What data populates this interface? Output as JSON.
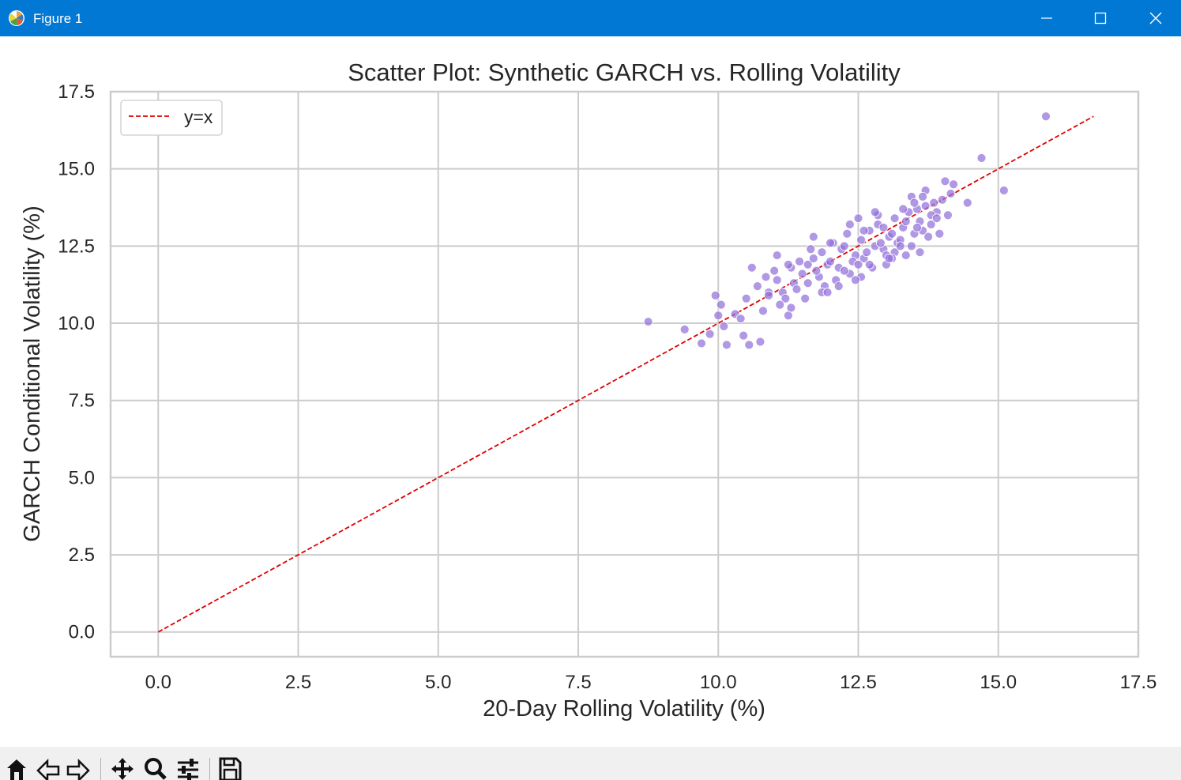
{
  "window": {
    "title": "Figure 1",
    "icon": "matplotlib-icon",
    "controls": [
      "minimize-icon",
      "maximize-icon",
      "close-icon"
    ]
  },
  "toolbar": {
    "buttons": [
      "home-icon",
      "back-icon",
      "forward-icon",
      "pan-icon",
      "zoom-icon",
      "configure-subplots-icon",
      "save-icon"
    ]
  },
  "chart_data": {
    "type": "scatter",
    "title": "Scatter Plot: Synthetic GARCH vs. Rolling Volatility",
    "xlabel": "20-Day Rolling Volatility (%)",
    "ylabel": "GARCH Conditional Volatility (%)",
    "xlim": [
      -0.85,
      17.5
    ],
    "ylim": [
      -0.8,
      17.5
    ],
    "xticks": [
      "0.0",
      "2.5",
      "5.0",
      "7.5",
      "10.0",
      "12.5",
      "15.0",
      "17.5"
    ],
    "yticks": [
      "0.0",
      "2.5",
      "5.0",
      "7.5",
      "10.0",
      "12.5",
      "15.0",
      "17.5"
    ],
    "grid": true,
    "legend": {
      "position": "top-left",
      "entries": [
        "y=x"
      ]
    },
    "point_color": "#9370DB",
    "line_color": "#e00000",
    "reference_line": {
      "label": "y=x",
      "style": "dashed",
      "x": [
        0,
        16.7
      ],
      "y": [
        0,
        16.7
      ]
    },
    "points": {
      "x": [
        8.75,
        9.4,
        9.7,
        9.85,
        9.95,
        10.0,
        10.05,
        10.1,
        10.15,
        10.3,
        10.4,
        10.45,
        10.5,
        10.55,
        10.6,
        10.75,
        10.8,
        10.9,
        11.25,
        14.7,
        15.1,
        15.85,
        14.45,
        14.2
      ],
      "y": [
        10.05,
        9.8,
        9.35,
        9.65,
        10.9,
        10.25,
        10.6,
        9.9,
        9.3,
        10.3,
        10.15,
        9.6,
        10.8,
        9.3,
        11.8,
        9.4,
        10.4,
        11.0,
        10.25,
        15.35,
        14.3,
        16.7,
        13.9,
        14.5
      ],
      "cluster": {
        "x": [
          10.7,
          10.9,
          11.05,
          11.15,
          11.3,
          11.35,
          11.5,
          11.6,
          11.7,
          11.8,
          11.85,
          11.95,
          12.05,
          12.15,
          12.2,
          12.3,
          12.35,
          12.45,
          12.55,
          12.6,
          12.7,
          12.8,
          12.85,
          12.95,
          13.05,
          13.15,
          13.2,
          13.3,
          13.4,
          13.5,
          13.6,
          13.7,
          13.8,
          13.9,
          14.0,
          14.1,
          11.2,
          11.4,
          11.6,
          11.75,
          11.9,
          12.0,
          12.1,
          12.25,
          12.4,
          12.5,
          12.65,
          12.75,
          12.9,
          13.0,
          13.1,
          13.25,
          13.35,
          13.45,
          13.55,
          13.65,
          13.75,
          13.85,
          10.85,
          11.0,
          11.1,
          11.45,
          11.55,
          11.65,
          12.35,
          12.55,
          12.7,
          12.85,
          13.0,
          13.15,
          13.3,
          13.45,
          13.6,
          13.8,
          11.3,
          11.85,
          12.0,
          12.15,
          12.45,
          12.6,
          12.95,
          13.1,
          13.35,
          13.5,
          13.7,
          13.95,
          14.05,
          11.05,
          11.25,
          11.7,
          11.95,
          12.25,
          12.5,
          12.8,
          13.05,
          13.25,
          13.55,
          13.65,
          13.9,
          14.15
        ],
        "y": [
          11.2,
          10.9,
          11.4,
          11.0,
          11.8,
          11.3,
          11.6,
          11.9,
          12.1,
          11.5,
          12.3,
          11.9,
          12.6,
          11.8,
          12.4,
          12.9,
          11.6,
          12.2,
          12.7,
          12.1,
          13.0,
          12.5,
          13.2,
          12.4,
          12.8,
          13.4,
          12.6,
          13.1,
          13.6,
          12.9,
          13.3,
          13.8,
          13.2,
          13.6,
          14.0,
          13.5,
          10.8,
          11.1,
          11.3,
          11.7,
          11.2,
          12.0,
          11.4,
          11.7,
          12.0,
          11.9,
          12.3,
          11.8,
          12.6,
          12.2,
          12.9,
          12.7,
          13.3,
          12.5,
          13.7,
          13.0,
          12.8,
          13.9,
          11.5,
          11.7,
          10.6,
          12.0,
          10.8,
          12.4,
          13.2,
          11.5,
          11.9,
          13.5,
          11.9,
          12.3,
          13.7,
          14.1,
          12.3,
          13.5,
          10.5,
          11.0,
          12.6,
          11.2,
          11.4,
          13.0,
          13.1,
          12.1,
          12.2,
          13.9,
          14.3,
          12.9,
          14.6,
          12.2,
          11.9,
          12.8,
          11.0,
          12.5,
          13.4,
          13.6,
          12.1,
          12.5,
          13.1,
          14.1,
          13.4,
          14.2
        ]
      }
    }
  }
}
